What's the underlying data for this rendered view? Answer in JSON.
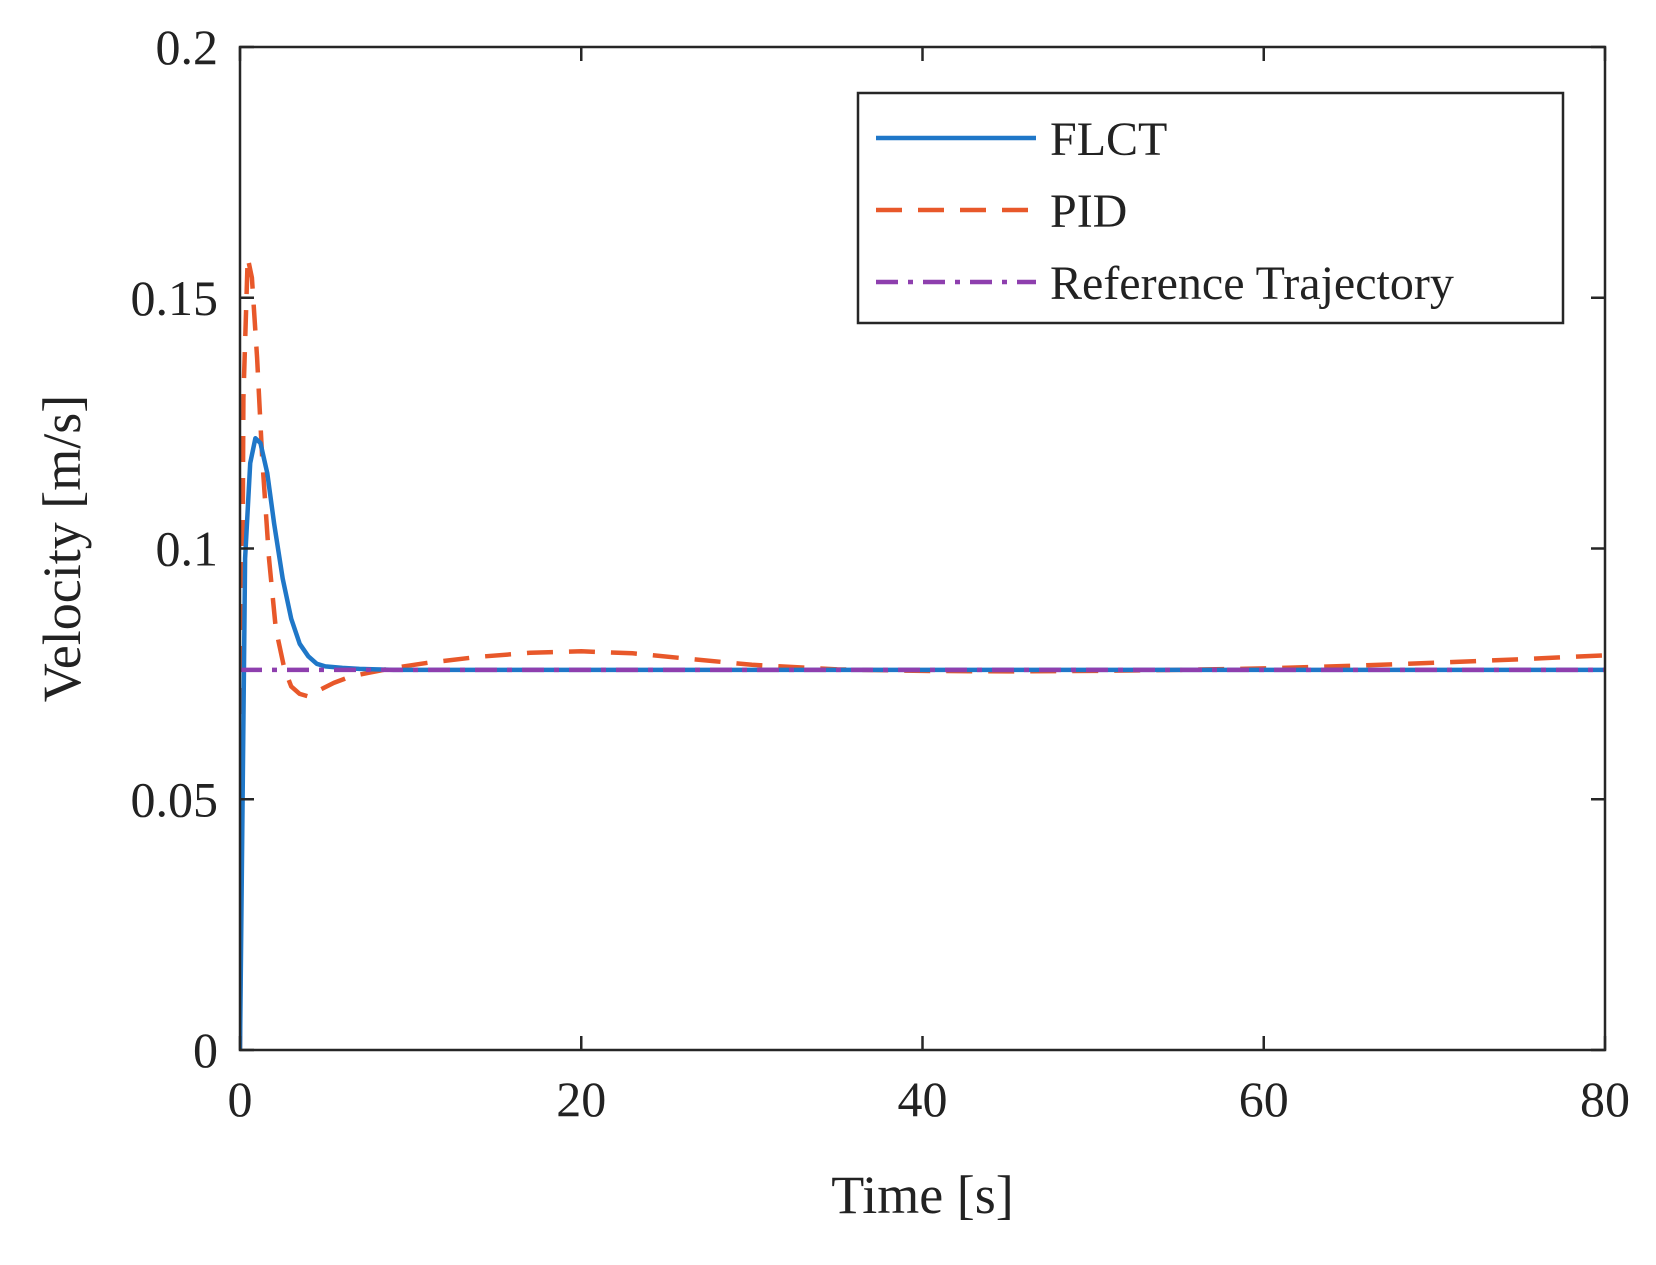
{
  "chart_data": {
    "type": "line",
    "title": "",
    "xlabel": "Time [s]",
    "ylabel": "Velocity [m/s]",
    "xlim": [
      0,
      80
    ],
    "ylim": [
      0,
      0.2
    ],
    "xticks": [
      0,
      20,
      40,
      60,
      80
    ],
    "xtick_labels": [
      "0",
      "20",
      "40",
      "60",
      "80"
    ],
    "yticks": [
      0,
      0.05,
      0.1,
      0.15,
      0.2
    ],
    "ytick_labels": [
      "0",
      "0.05",
      "0.1",
      "0.15",
      "0.2"
    ],
    "grid": false,
    "legend_position": "top-right",
    "series": [
      {
        "name": "FLCT",
        "color": "#1f77c8",
        "style": "solid",
        "x": [
          0,
          0.3,
          0.6,
          0.9,
          1.2,
          1.6,
          2.0,
          2.5,
          3.0,
          3.5,
          4.0,
          4.5,
          5.0,
          6.0,
          7.0,
          8.0,
          9.0,
          10,
          15,
          20,
          30,
          40,
          50,
          60,
          70,
          80
        ],
        "y": [
          0,
          0.098,
          0.117,
          0.122,
          0.121,
          0.115,
          0.105,
          0.094,
          0.086,
          0.081,
          0.0785,
          0.077,
          0.0765,
          0.0762,
          0.076,
          0.0759,
          0.0758,
          0.0758,
          0.0758,
          0.0758,
          0.0758,
          0.0758,
          0.0758,
          0.0758,
          0.0758,
          0.0758
        ]
      },
      {
        "name": "PID",
        "color": "#e8582a",
        "style": "dashed",
        "x": [
          0,
          0.2,
          0.45,
          0.7,
          1.0,
          1.3,
          1.7,
          2.1,
          2.6,
          3.0,
          3.5,
          4.0,
          4.5,
          5.5,
          6.5,
          7.5,
          9,
          11,
          14,
          17,
          20,
          23,
          26,
          30,
          35,
          40,
          45,
          50,
          55,
          60,
          65,
          70,
          75,
          80
        ],
        "y": [
          0,
          0.13,
          0.158,
          0.154,
          0.138,
          0.118,
          0.098,
          0.084,
          0.076,
          0.0725,
          0.071,
          0.0705,
          0.0715,
          0.0732,
          0.0745,
          0.0752,
          0.0762,
          0.0772,
          0.0784,
          0.0792,
          0.0795,
          0.0791,
          0.0781,
          0.0768,
          0.0759,
          0.0756,
          0.0755,
          0.0756,
          0.0758,
          0.0761,
          0.0766,
          0.0772,
          0.0779,
          0.0787
        ]
      },
      {
        "name": "Reference Trajectory",
        "color": "#8e3fae",
        "style": "dashdot",
        "x": [
          0,
          80
        ],
        "y": [
          0.0758,
          0.0758
        ]
      }
    ]
  }
}
